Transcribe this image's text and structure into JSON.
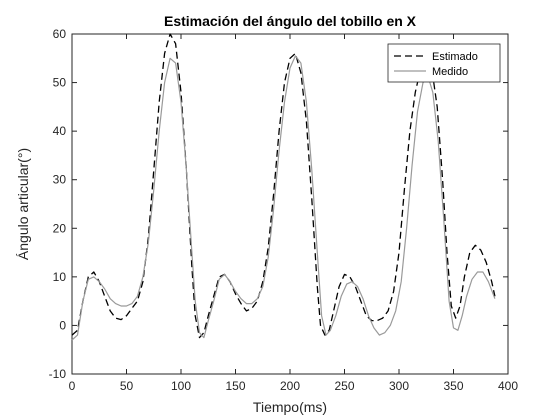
{
  "chart_data": {
    "type": "line",
    "title": "Estimación del ángulo del tobillo en X",
    "xlabel": "Tiempo(ms)",
    "ylabel": "Ángulo articular(°)",
    "xlim": [
      0,
      400
    ],
    "ylim": [
      -10,
      60
    ],
    "xticks": [
      0,
      50,
      100,
      150,
      200,
      250,
      300,
      350,
      400
    ],
    "yticks": [
      -10,
      0,
      10,
      20,
      30,
      40,
      50,
      60
    ],
    "grid": false,
    "legend_position": "top-right",
    "series": [
      {
        "name": "Estimado",
        "style": "dashed",
        "color": "#000000",
        "points": [
          [
            0,
            -2
          ],
          [
            5,
            -1
          ],
          [
            10,
            5
          ],
          [
            15,
            10
          ],
          [
            20,
            11
          ],
          [
            25,
            9
          ],
          [
            30,
            6
          ],
          [
            35,
            3
          ],
          [
            40,
            1.5
          ],
          [
            45,
            1.2
          ],
          [
            50,
            2
          ],
          [
            55,
            3.5
          ],
          [
            60,
            5
          ],
          [
            65,
            9
          ],
          [
            70,
            18
          ],
          [
            75,
            32
          ],
          [
            80,
            46
          ],
          [
            85,
            56
          ],
          [
            90,
            60
          ],
          [
            95,
            58
          ],
          [
            100,
            48
          ],
          [
            105,
            32
          ],
          [
            110,
            12
          ],
          [
            113,
            2
          ],
          [
            117,
            -2.5
          ],
          [
            121,
            -1.5
          ],
          [
            125,
            2
          ],
          [
            130,
            6
          ],
          [
            135,
            10
          ],
          [
            140,
            10.5
          ],
          [
            145,
            9
          ],
          [
            150,
            6.5
          ],
          [
            155,
            4.5
          ],
          [
            160,
            3
          ],
          [
            165,
            3.5
          ],
          [
            170,
            5
          ],
          [
            175,
            9
          ],
          [
            180,
            16
          ],
          [
            185,
            27
          ],
          [
            190,
            40
          ],
          [
            195,
            50
          ],
          [
            200,
            55
          ],
          [
            205,
            56
          ],
          [
            210,
            52
          ],
          [
            215,
            42
          ],
          [
            220,
            26
          ],
          [
            225,
            8
          ],
          [
            228,
            0
          ],
          [
            232,
            -2
          ],
          [
            236,
            -1
          ],
          [
            240,
            3
          ],
          [
            245,
            8
          ],
          [
            250,
            10.5
          ],
          [
            255,
            10
          ],
          [
            260,
            8
          ],
          [
            265,
            5
          ],
          [
            270,
            2
          ],
          [
            275,
            1
          ],
          [
            280,
            1
          ],
          [
            285,
            1.5
          ],
          [
            290,
            3
          ],
          [
            295,
            7
          ],
          [
            300,
            15
          ],
          [
            305,
            28
          ],
          [
            310,
            40
          ],
          [
            315,
            48
          ],
          [
            320,
            53
          ],
          [
            325,
            55
          ],
          [
            330,
            53
          ],
          [
            335,
            45
          ],
          [
            340,
            30
          ],
          [
            344,
            15
          ],
          [
            348,
            4
          ],
          [
            352,
            1.5
          ],
          [
            356,
            4
          ],
          [
            360,
            10
          ],
          [
            365,
            15
          ],
          [
            370,
            16.5
          ],
          [
            375,
            15.5
          ],
          [
            380,
            13
          ],
          [
            385,
            9
          ],
          [
            388,
            6
          ]
        ]
      },
      {
        "name": "Medido",
        "style": "solid",
        "color": "#9a9a9a",
        "points": [
          [
            0,
            -3
          ],
          [
            5,
            -2
          ],
          [
            10,
            5
          ],
          [
            15,
            9.5
          ],
          [
            20,
            10
          ],
          [
            25,
            9
          ],
          [
            30,
            7.5
          ],
          [
            35,
            5.5
          ],
          [
            40,
            4.5
          ],
          [
            45,
            4
          ],
          [
            50,
            4
          ],
          [
            55,
            4.5
          ],
          [
            60,
            6
          ],
          [
            65,
            10
          ],
          [
            70,
            17
          ],
          [
            75,
            28
          ],
          [
            80,
            40
          ],
          [
            85,
            50
          ],
          [
            90,
            55
          ],
          [
            95,
            54
          ],
          [
            100,
            46
          ],
          [
            105,
            32
          ],
          [
            110,
            15
          ],
          [
            113,
            5
          ],
          [
            117,
            -1.5
          ],
          [
            121,
            -2.5
          ],
          [
            125,
            1
          ],
          [
            130,
            5
          ],
          [
            135,
            9.5
          ],
          [
            140,
            10.5
          ],
          [
            145,
            9
          ],
          [
            150,
            7
          ],
          [
            155,
            5.5
          ],
          [
            160,
            4.5
          ],
          [
            165,
            4.5
          ],
          [
            170,
            5.5
          ],
          [
            175,
            8
          ],
          [
            180,
            14
          ],
          [
            185,
            24
          ],
          [
            190,
            36
          ],
          [
            195,
            46
          ],
          [
            200,
            53
          ],
          [
            205,
            55.5
          ],
          [
            210,
            54
          ],
          [
            215,
            46
          ],
          [
            220,
            32
          ],
          [
            225,
            15
          ],
          [
            229,
            2
          ],
          [
            233,
            -2
          ],
          [
            237,
            -1
          ],
          [
            242,
            2
          ],
          [
            247,
            6
          ],
          [
            252,
            8.5
          ],
          [
            257,
            9
          ],
          [
            262,
            8
          ],
          [
            267,
            5.5
          ],
          [
            272,
            2
          ],
          [
            277,
            -0.5
          ],
          [
            282,
            -2
          ],
          [
            287,
            -1.5
          ],
          [
            292,
            0
          ],
          [
            297,
            3
          ],
          [
            302,
            9
          ],
          [
            307,
            20
          ],
          [
            312,
            33
          ],
          [
            317,
            44
          ],
          [
            322,
            50
          ],
          [
            327,
            51
          ],
          [
            331,
            48
          ],
          [
            336,
            38
          ],
          [
            341,
            22
          ],
          [
            346,
            5
          ],
          [
            350,
            -0.5
          ],
          [
            354,
            -1
          ],
          [
            358,
            2
          ],
          [
            362,
            6
          ],
          [
            367,
            9.5
          ],
          [
            372,
            11
          ],
          [
            377,
            11
          ],
          [
            382,
            9
          ],
          [
            388,
            5.5
          ]
        ]
      }
    ]
  }
}
